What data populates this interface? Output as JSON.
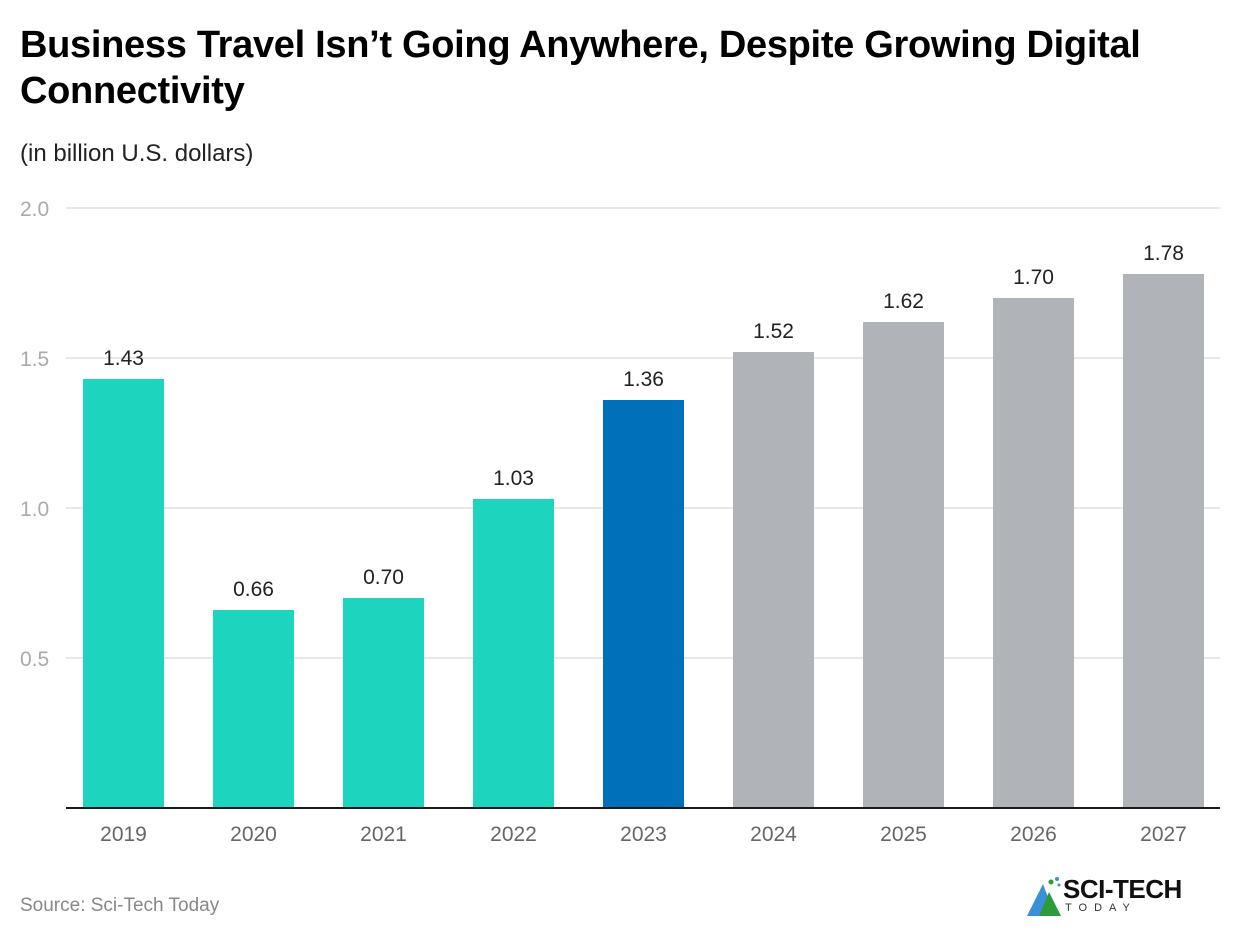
{
  "title": "Business Travel Isn’t Going Anywhere, Despite Growing Digital Connectivity",
  "subtitle": "(in billion U.S. dollars)",
  "source": "Source: Sci-Tech Today",
  "logo": {
    "name": "SCI-TECH",
    "sub": "TODAY"
  },
  "colors": {
    "historical": "#1dd5bf",
    "current": "#0070ba",
    "forecast": "#b0b4b8"
  },
  "chart_data": {
    "type": "bar",
    "title": "Business Travel Isn’t Going Anywhere, Despite Growing Digital Connectivity",
    "subtitle": "(in billion U.S. dollars)",
    "xlabel": "",
    "ylabel": "",
    "categories": [
      "2019",
      "2020",
      "2021",
      "2022",
      "2023",
      "2024",
      "2025",
      "2026",
      "2027"
    ],
    "values": [
      1.43,
      0.66,
      0.7,
      1.03,
      1.36,
      1.52,
      1.62,
      1.7,
      1.78
    ],
    "labels": [
      "1.43",
      "0.66",
      "0.70",
      "1.03",
      "1.36",
      "1.52",
      "1.62",
      "1.70",
      "1.78"
    ],
    "bar_groups": [
      "historical",
      "historical",
      "historical",
      "historical",
      "current",
      "forecast",
      "forecast",
      "forecast",
      "forecast"
    ],
    "ylim": [
      0,
      2.0
    ],
    "yticks": [
      0.5,
      1.0,
      1.5,
      2.0
    ],
    "ytick_labels": [
      "0.5",
      "1.0",
      "1.5",
      "2.0"
    ],
    "grid": true,
    "legend": "none"
  }
}
